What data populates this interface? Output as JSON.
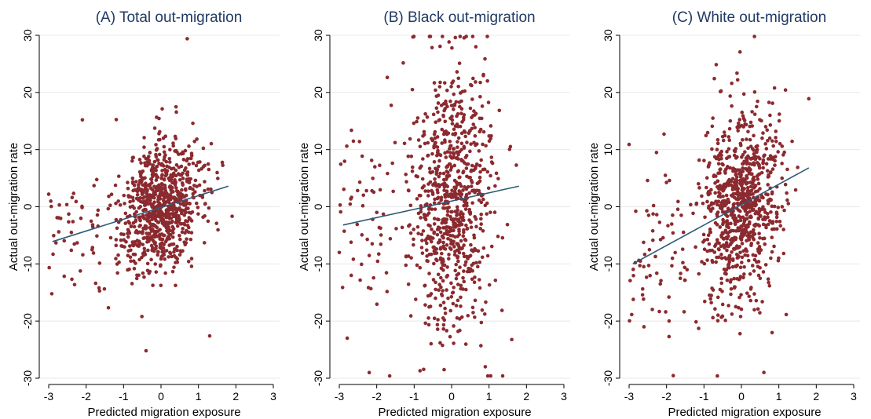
{
  "style": {
    "point_color": "#8b2a2f",
    "line_color": "#2f5b78",
    "title_color": "#1f3a63"
  },
  "chart_data": [
    {
      "type": "scatter",
      "title": "(A) Total out-migration",
      "xlabel": "Predicted migration exposure",
      "ylabel": "Actual out-migration rate",
      "xlim": [
        -3,
        3
      ],
      "ylim": [
        -30,
        30
      ],
      "xticks": [
        -3,
        -2,
        -1,
        0,
        1,
        2,
        3
      ],
      "yticks": [
        -30,
        -20,
        -10,
        0,
        10,
        20,
        30
      ],
      "grid": "horizontal",
      "fit_line": {
        "x": [
          -2.9,
          1.8
        ],
        "y": [
          -6.1,
          3.6
        ]
      },
      "points": {
        "n": 900,
        "x_mean": 0.0,
        "x_sd": 0.55,
        "y_mean": 0.0,
        "y_sd": 5.5,
        "slope": 2.06
      },
      "extremes": [
        [
          0.7,
          29.4
        ],
        [
          -0.4,
          -25.2
        ],
        [
          1.3,
          -22.6
        ],
        [
          -2.1,
          15.2
        ],
        [
          -3.0,
          2.2
        ]
      ]
    },
    {
      "type": "scatter",
      "title": "(B) Black out-migration",
      "xlabel": "Predicted migration exposure",
      "ylabel": "Actual out-migration rate",
      "xlim": [
        -3,
        3
      ],
      "ylim": [
        -30,
        30
      ],
      "xticks": [
        -3,
        -2,
        -1,
        0,
        1,
        2,
        3
      ],
      "yticks": [
        -30,
        -20,
        -10,
        0,
        10,
        20,
        30
      ],
      "grid": "horizontal",
      "fit_line": {
        "x": [
          -2.9,
          1.8
        ],
        "y": [
          -3.2,
          3.6
        ]
      },
      "points": {
        "n": 850,
        "x_mean": 0.0,
        "x_sd": 0.55,
        "y_mean": 0.5,
        "y_sd": 11.5,
        "slope": 1.45
      },
      "extremes": [
        [
          0.1,
          29.6
        ],
        [
          -0.2,
          -28.5
        ],
        [
          -2.8,
          10.6
        ],
        [
          -3.0,
          -8.0
        ],
        [
          0.9,
          -28.0
        ]
      ]
    },
    {
      "type": "scatter",
      "title": "(C) White out-migration",
      "xlabel": "Predicted migration exposure",
      "ylabel": "Actual out-migration rate",
      "xlim": [
        -3,
        3
      ],
      "ylim": [
        -30,
        30
      ],
      "xticks": [
        -3,
        -2,
        -1,
        0,
        1,
        2,
        3
      ],
      "yticks": [
        -30,
        -20,
        -10,
        0,
        10,
        20,
        30
      ],
      "grid": "horizontal",
      "fit_line": {
        "x": [
          -2.9,
          1.8
        ],
        "y": [
          -10.0,
          6.8
        ]
      },
      "points": {
        "n": 900,
        "x_mean": 0.0,
        "x_sd": 0.55,
        "y_mean": 0.3,
        "y_sd": 8.5,
        "slope": 3.57
      },
      "extremes": [
        [
          -0.1,
          22.2
        ],
        [
          0.6,
          -29.0
        ],
        [
          -3.0,
          10.9
        ],
        [
          1.8,
          18.9
        ],
        [
          -2.7,
          -9.5
        ]
      ]
    }
  ]
}
